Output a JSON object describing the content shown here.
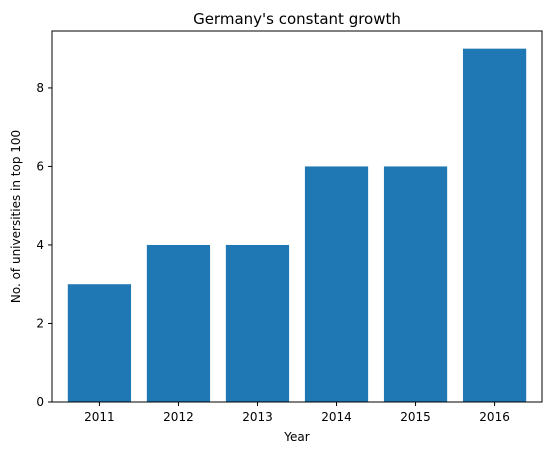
{
  "chart_data": {
    "type": "bar",
    "title": "Germany's constant growth",
    "xlabel": "Year",
    "ylabel": "No. of universities in top 100",
    "categories": [
      "2011",
      "2012",
      "2013",
      "2014",
      "2015",
      "2016"
    ],
    "values": [
      3,
      4,
      4,
      6,
      6,
      9
    ],
    "ylim": [
      0,
      9.45
    ],
    "yticks": [
      0,
      2,
      4,
      6,
      8
    ],
    "bar_color": "#1f77b4",
    "grid": false,
    "legend": "none"
  }
}
